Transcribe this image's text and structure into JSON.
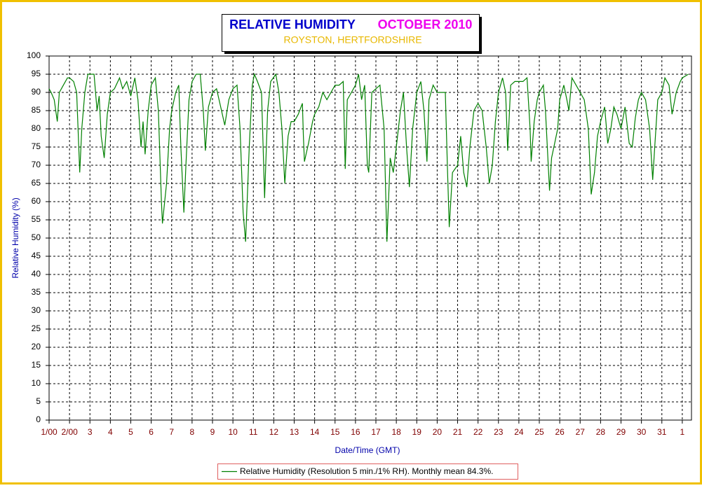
{
  "chart_data": {
    "type": "line",
    "title": "RELATIVE HUMIDITY",
    "period": "OCTOBER 2010",
    "subtitle": "ROYSTON, HERTFORDSHIRE",
    "x_label": "Date/Time (GMT)",
    "y_label": "Relative Humidity (%)",
    "xlim": [
      1,
      32.45
    ],
    "ylim": [
      0,
      100
    ],
    "xticks": [
      {
        "value": 1,
        "label": "1/00"
      },
      {
        "value": 2,
        "label": "2/00"
      },
      3,
      4,
      5,
      6,
      7,
      8,
      9,
      10,
      11,
      12,
      13,
      14,
      15,
      16,
      17,
      18,
      19,
      20,
      21,
      22,
      23,
      24,
      25,
      26,
      27,
      28,
      29,
      30,
      31,
      {
        "value": 32,
        "label": "1"
      }
    ],
    "yticks": [
      0,
      5,
      10,
      15,
      20,
      25,
      30,
      35,
      40,
      45,
      50,
      55,
      60,
      65,
      70,
      75,
      80,
      85,
      90,
      95,
      100
    ],
    "grid": true,
    "legend": "bottom",
    "series": [
      {
        "name": "Relative Humidity (Resolution 5 min./1% RH). Monthly mean 84.3%.",
        "color": "#008000",
        "x": [
          1.0,
          1.1,
          1.25,
          1.4,
          1.5,
          1.7,
          1.9,
          2.0,
          2.2,
          2.35,
          2.5,
          2.6,
          2.75,
          2.9,
          3.0,
          3.2,
          3.35,
          3.45,
          3.55,
          3.7,
          3.85,
          4.0,
          4.2,
          4.45,
          4.6,
          4.8,
          5.0,
          5.2,
          5.35,
          5.5,
          5.6,
          5.7,
          5.85,
          6.0,
          6.2,
          6.35,
          6.5,
          6.55,
          6.75,
          6.9,
          7.0,
          7.2,
          7.35,
          7.45,
          7.6,
          7.7,
          7.85,
          8.0,
          8.2,
          8.4,
          8.55,
          8.65,
          8.8,
          9.0,
          9.2,
          9.4,
          9.6,
          9.8,
          10.0,
          10.2,
          10.35,
          10.5,
          10.62,
          10.8,
          10.95,
          11.05,
          11.2,
          11.4,
          11.48,
          11.55,
          11.7,
          11.85,
          12.1,
          12.25,
          12.4,
          12.54,
          12.7,
          12.85,
          13.0,
          13.2,
          13.4,
          13.45,
          13.5,
          13.7,
          13.9,
          14.0,
          14.2,
          14.4,
          14.6,
          14.8,
          15.0,
          15.2,
          15.4,
          15.5,
          15.6,
          15.8,
          16.0,
          16.15,
          16.3,
          16.45,
          16.58,
          16.65,
          16.8,
          17.0,
          17.2,
          17.4,
          17.54,
          17.7,
          17.85,
          18.0,
          18.2,
          18.35,
          18.5,
          18.64,
          18.8,
          19.0,
          19.2,
          19.35,
          19.5,
          19.6,
          19.8,
          20.0,
          20.2,
          20.4,
          20.5,
          20.59,
          20.75,
          21.0,
          21.15,
          21.3,
          21.45,
          21.6,
          21.8,
          22.0,
          22.2,
          22.4,
          22.55,
          22.7,
          22.85,
          23.0,
          23.2,
          23.35,
          23.45,
          23.6,
          23.8,
          24.0,
          24.2,
          24.4,
          24.55,
          24.6,
          24.75,
          24.9,
          25.0,
          25.2,
          25.3,
          25.5,
          25.6,
          25.75,
          25.9,
          26.0,
          26.2,
          26.35,
          26.45,
          26.6,
          26.8,
          27.0,
          27.2,
          27.4,
          27.54,
          27.7,
          27.85,
          28.0,
          28.2,
          28.35,
          28.5,
          28.65,
          28.8,
          29.0,
          29.2,
          29.4,
          29.55,
          29.7,
          29.85,
          30.0,
          30.2,
          30.4,
          30.55,
          30.65,
          30.8,
          31.0,
          31.15,
          31.35,
          31.5,
          31.7,
          31.9,
          32.0,
          32.3
        ],
        "values": [
          91,
          90,
          88,
          82,
          90,
          92,
          94,
          94,
          93,
          90,
          68,
          80,
          90,
          95,
          95,
          95,
          85,
          89,
          78,
          72,
          84,
          90,
          91,
          94,
          91,
          93,
          89,
          94,
          88,
          75,
          82,
          73,
          85,
          92,
          94,
          85,
          60,
          54,
          65,
          80,
          85,
          90,
          92,
          75,
          57,
          70,
          88,
          93,
          95,
          95,
          85,
          74,
          86,
          90,
          91,
          86,
          81,
          88,
          91,
          92,
          80,
          57,
          49,
          75,
          92,
          95,
          93,
          90,
          75,
          61,
          85,
          93,
          95,
          90,
          80,
          65,
          78,
          82,
          82,
          84,
          87,
          78,
          71,
          76,
          82,
          84,
          86,
          90,
          88,
          90,
          92,
          92,
          93,
          69,
          88,
          90,
          92,
          95,
          88,
          92,
          70,
          68,
          90,
          91,
          92,
          80,
          49,
          72,
          68,
          75,
          85,
          90,
          75,
          64,
          80,
          90,
          93,
          85,
          71,
          88,
          92,
          90,
          90,
          90,
          70,
          53,
          68,
          70,
          78,
          68,
          64,
          75,
          85,
          87,
          85,
          75,
          65,
          70,
          82,
          90,
          94,
          90,
          74,
          92,
          93,
          93,
          93,
          94,
          80,
          71,
          82,
          88,
          90,
          92,
          85,
          63,
          72,
          76,
          80,
          88,
          92,
          88,
          85,
          94,
          92,
          90,
          88,
          80,
          62,
          68,
          78,
          82,
          86,
          76,
          80,
          86,
          84,
          80,
          86,
          76,
          75,
          83,
          88,
          90,
          88,
          80,
          66,
          75,
          88,
          90,
          94,
          92,
          84,
          90,
          93,
          94,
          95
        ]
      }
    ]
  }
}
